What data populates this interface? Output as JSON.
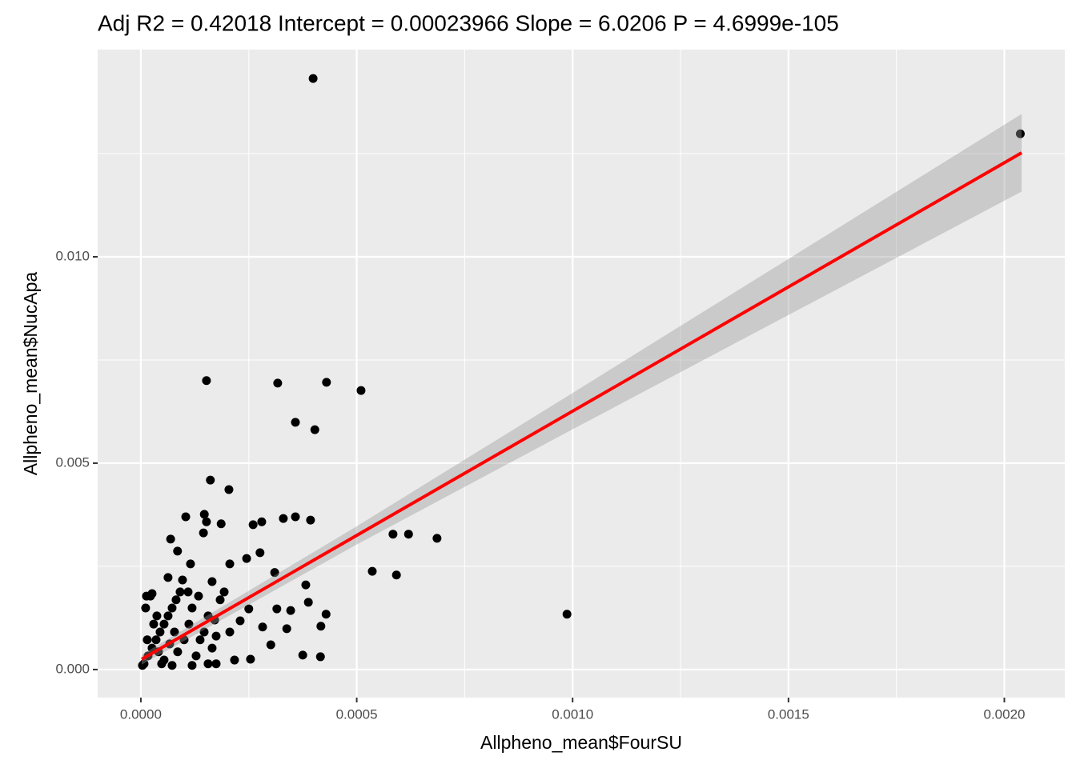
{
  "chart_data": {
    "type": "scatter",
    "title": "Adj R2 =  0.42018 Intercept = 0.00023966  Slope = 6.0206  P = 4.6999e-105",
    "xlabel": "Allpheno_mean$FourSU",
    "ylabel": "Allpheno_mean$NucApa",
    "xlim": [
      -0.0001,
      0.00214
    ],
    "ylim": [
      -0.00068,
      0.01502
    ],
    "xticks": [
      {
        "value": 0,
        "label": "0.0000"
      },
      0.0005,
      {
        "value": 0.001,
        "label": "0.0010"
      },
      {
        "value": 0.0015,
        "label": "0.0015"
      },
      {
        "value": 0.002,
        "label": "0.0020"
      }
    ],
    "yticks": [
      {
        "value": 0,
        "label": "0.000"
      },
      0.005,
      {
        "value": 0.01,
        "label": "0.010"
      }
    ],
    "xminor": [
      0.00025,
      0.00075,
      0.00125,
      0.00175
    ],
    "yminor": [
      0.0025,
      0.0075,
      0.0125
    ],
    "grid": true,
    "color": "#000000",
    "x": [
      0.000399,
      0.002037,
      0.000152,
      0.000317,
      0.00043,
      0.00051,
      0.000358,
      0.000403,
      0.000161,
      0.000204,
      0.000147,
      0.000104,
      0.00033,
      0.000358,
      0.000393,
      0.000186,
      0.000152,
      0.00026,
      0.00028,
      0.000145,
      6.9e-05,
      0.000584,
      0.00062,
      0.000686,
      0.000276,
      8.5e-05,
      0.000245,
      0.000206,
      0.000115,
      0.000536,
      0.000592,
      0.00031,
      0.000165,
      0.000382,
      6.3e-05,
      0.000987,
      0.000429,
      0.000388,
      0.000315,
      0.000347,
      0.000417,
      0.000338,
      0.000375,
      0.000416,
      0.00025,
      0.000282,
      0.000301,
      0.000254,
      0.000217,
      0.000206,
      0.000171,
      0.00023,
      7.4e-06,
      1.67e-05,
      2.6e-05,
      3.53e-05,
      4.45e-05,
      5.38e-05,
      6.31e-05,
      7.24e-05,
      8.16e-05,
      9.09e-05,
      1.11e-05,
      2.23e-05,
      2.97e-05,
      4.08e-05,
      5.38e-05,
      6.68e-05,
      7.79e-05,
      8.53e-05,
      0.0001002,
      0.0001113,
      0.0001187,
      0.000128,
      0.0001373,
      0.0001466,
      0.0001558,
      0.0001651,
      0.0001744,
      0.0001837,
      0.000193,
      0.0001095,
      9.65e-05,
      3.71e-05,
      1.48e-05,
      3.7e-06,
      4.82e-05,
      7.24e-05,
      0.0001187,
      0.0001558,
      1.3e-05,
      2.6e-05,
      0.0001336,
      0.0001744
    ],
    "y": [
      0.01432,
      0.01298,
      0.007,
      0.00694,
      0.00696,
      0.00676,
      0.00599,
      0.00581,
      0.00459,
      0.00436,
      0.00376,
      0.0037,
      0.00366,
      0.0037,
      0.00362,
      0.00353,
      0.00358,
      0.00351,
      0.00358,
      0.00331,
      0.00316,
      0.00328,
      0.00328,
      0.00318,
      0.00283,
      0.00287,
      0.00269,
      0.00256,
      0.00256,
      0.00238,
      0.00229,
      0.00235,
      0.00213,
      0.00205,
      0.00223,
      0.00134,
      0.00134,
      0.00163,
      0.00147,
      0.00143,
      0.00105,
      0.00099,
      0.00035,
      0.00031,
      0.00147,
      0.00103,
      0.0006,
      0.00025,
      0.00023,
      0.00091,
      0.0012,
      0.00118,
      0.00014,
      0.00033,
      0.00052,
      0.00072,
      0.00091,
      0.0011,
      0.0013,
      0.00149,
      0.00169,
      0.00188,
      0.00149,
      0.00178,
      0.0011,
      0.00043,
      0.00023,
      0.00062,
      0.00091,
      0.00043,
      0.00072,
      0.0011,
      0.00149,
      0.00033,
      0.00072,
      0.00091,
      0.0013,
      0.00052,
      0.00081,
      0.00169,
      0.00188,
      0.00188,
      0.00217,
      0.0013,
      0.00072,
      0.0001,
      0.00014,
      0.0001,
      0.0001,
      0.00014,
      0.00178,
      0.00184,
      0.00178,
      0.00014
    ],
    "fit": {
      "x": [
        2e-06,
        0.0005,
        0.001,
        0.0015,
        0.00204
      ],
      "y": [
        0.00025,
        0.00325,
        0.00626,
        0.00927,
        0.01252
      ],
      "lower": [
        0.00012,
        0.00303,
        0.00582,
        0.00859,
        0.01158
      ],
      "upper": [
        0.00036,
        0.00347,
        0.0067,
        0.00995,
        0.01346
      ],
      "color": "#ff0000",
      "band_color": "#999999"
    }
  }
}
